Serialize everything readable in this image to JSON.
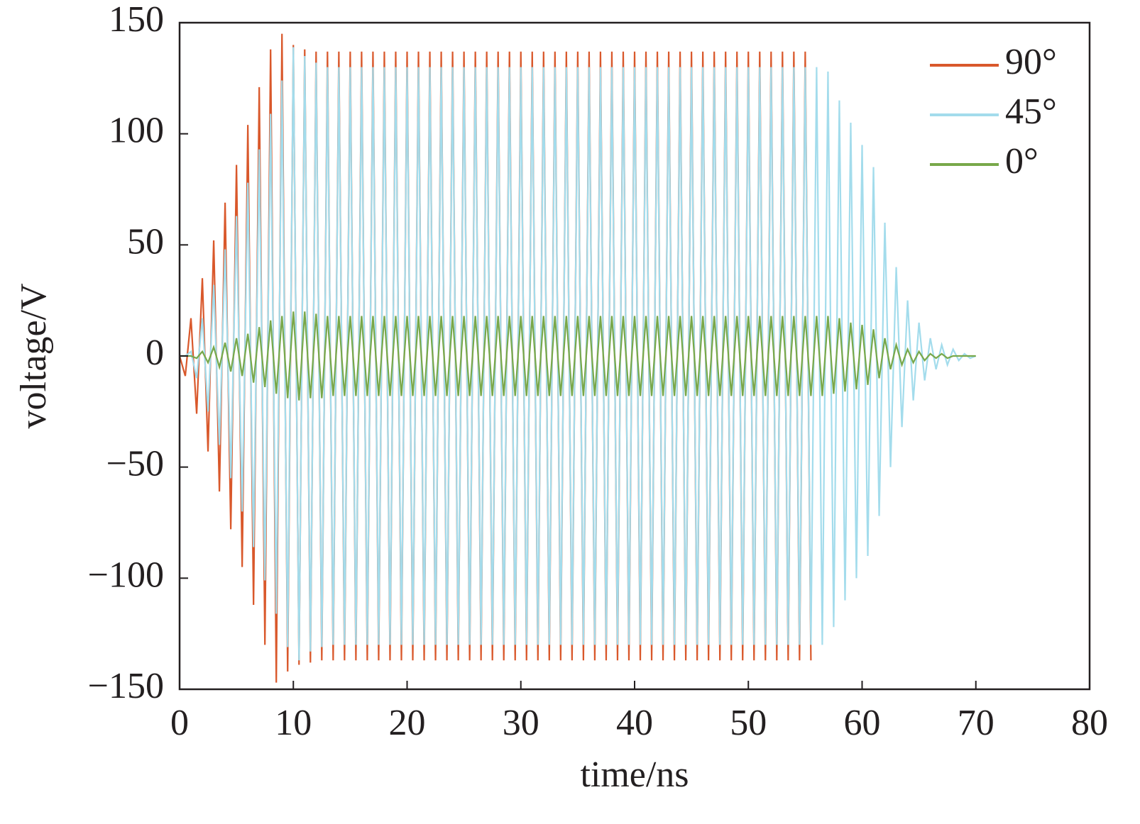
{
  "chart_data": {
    "type": "line",
    "xlabel": "time/ns",
    "ylabel": "voltage/V",
    "xlim": [
      0,
      80
    ],
    "xticks": [
      0,
      10,
      20,
      30,
      40,
      50,
      60,
      70,
      80
    ],
    "ylim": [
      -150,
      150
    ],
    "yticks": [
      {
        "value": -150,
        "label": "−150"
      },
      {
        "value": -100,
        "label": "−100"
      },
      {
        "value": -50,
        "label": "−50"
      },
      0,
      50,
      100,
      150
    ],
    "grid": false,
    "legend": "upper right",
    "x": [
      0,
      0.5,
      1,
      1.5,
      2,
      2.5,
      3,
      3.5,
      4,
      4.5,
      5,
      5.5,
      6,
      6.5,
      7,
      7.5,
      8,
      8.5,
      9,
      9.5,
      10,
      10.5,
      11,
      11.5,
      12,
      12.5,
      13,
      13.5,
      14,
      14.5,
      15,
      15.5,
      16,
      16.5,
      17,
      17.5,
      18,
      18.5,
      19,
      19.5,
      20,
      20.5,
      21,
      21.5,
      22,
      22.5,
      23,
      23.5,
      24,
      24.5,
      25,
      25.5,
      26,
      26.5,
      27,
      27.5,
      28,
      28.5,
      29,
      29.5,
      30,
      30.5,
      31,
      31.5,
      32,
      32.5,
      33,
      33.5,
      34,
      34.5,
      35,
      35.5,
      36,
      36.5,
      37,
      37.5,
      38,
      38.5,
      39,
      39.5,
      40,
      40.5,
      41,
      41.5,
      42,
      42.5,
      43,
      43.5,
      44,
      44.5,
      45,
      45.5,
      46,
      46.5,
      47,
      47.5,
      48,
      48.5,
      49,
      49.5,
      50,
      50.5,
      51,
      51.5,
      52,
      52.5,
      53,
      53.5,
      54,
      54.5,
      55,
      55.5,
      56,
      56.5,
      57,
      57.5,
      58,
      58.5,
      59,
      59.5,
      60,
      60.5,
      61,
      61.5,
      62,
      62.5,
      63,
      63.5,
      64,
      64.5,
      65,
      65.5,
      66,
      66.5,
      67,
      67.5,
      68,
      68.5,
      69,
      69.5,
      70
    ],
    "series": [
      {
        "name": "90°",
        "color": "#d9582b",
        "values": [
          0,
          -9,
          17,
          -26,
          35,
          -43,
          52,
          -61,
          69,
          -78,
          86,
          -95,
          104,
          -112,
          121,
          -130,
          138,
          -147,
          145,
          -142,
          140,
          -139,
          138,
          -138,
          137,
          -137,
          137,
          -137,
          137,
          -137,
          137,
          -137,
          137,
          -137,
          137,
          -137,
          137,
          -137,
          137,
          -137,
          137,
          -137,
          137,
          -137,
          137,
          -137,
          137,
          -137,
          137,
          -137,
          137,
          -137,
          137,
          -137,
          137,
          -137,
          137,
          -137,
          137,
          -137,
          137,
          -137,
          137,
          -137,
          137,
          -137,
          137,
          -137,
          137,
          -137,
          137,
          -137,
          137,
          -137,
          137,
          -137,
          137,
          -137,
          137,
          -137,
          137,
          -137,
          137,
          -137,
          137,
          -137,
          137,
          -137,
          137,
          -137,
          137,
          -137,
          137,
          -137,
          137,
          -137,
          137,
          -137,
          137,
          -137,
          137,
          -137,
          137,
          -137,
          137,
          -137,
          137,
          -137,
          137,
          -137,
          137,
          -137,
          null,
          null,
          null,
          null,
          null,
          null,
          null,
          null,
          null,
          null,
          null,
          null,
          null,
          null,
          null,
          null,
          null,
          null,
          null,
          null,
          null,
          null,
          null,
          null,
          null,
          null,
          null,
          null,
          null
        ]
      },
      {
        "name": "45°",
        "color": "#a3dcec",
        "values": [
          0,
          0,
          2,
          -10,
          17,
          -25,
          32,
          -40,
          48,
          -55,
          63,
          -70,
          78,
          -86,
          93,
          -101,
          109,
          -116,
          124,
          -131,
          139,
          -137,
          135,
          -133,
          132,
          -131,
          130,
          -130,
          130,
          -130,
          130,
          -130,
          130,
          -130,
          130,
          -130,
          130,
          -130,
          130,
          -130,
          130,
          -130,
          130,
          -130,
          130,
          -130,
          130,
          -130,
          130,
          -130,
          130,
          -130,
          130,
          -130,
          130,
          -130,
          130,
          -130,
          130,
          -130,
          130,
          -130,
          130,
          -130,
          130,
          -130,
          130,
          -130,
          130,
          -130,
          130,
          -130,
          130,
          -130,
          130,
          -130,
          130,
          -130,
          130,
          -130,
          130,
          -130,
          130,
          -130,
          130,
          -130,
          130,
          -130,
          130,
          -130,
          130,
          -130,
          130,
          -130,
          130,
          -130,
          130,
          -130,
          130,
          -130,
          130,
          -130,
          130,
          -130,
          130,
          -130,
          130,
          -130,
          130,
          -130,
          130,
          -130,
          130,
          -130,
          128,
          -122,
          115,
          -110,
          105,
          -100,
          95,
          -90,
          85,
          -72,
          60,
          -50,
          40,
          -32,
          25,
          -20,
          15,
          -11,
          8,
          -6,
          5,
          -4,
          3,
          -2,
          1,
          -1,
          0
        ]
      },
      {
        "name": "0°",
        "color": "#78a84a",
        "values": [
          0,
          0,
          0,
          -1,
          2,
          -3,
          4,
          -5,
          6,
          -7,
          8,
          -9,
          10,
          -12,
          13,
          -14,
          16,
          -17,
          18,
          -19,
          20,
          -20,
          20,
          -19,
          19,
          -19,
          18,
          -18,
          18,
          -18,
          18,
          -18,
          18,
          -18,
          18,
          -18,
          18,
          -18,
          18,
          -18,
          18,
          -18,
          18,
          -18,
          18,
          -18,
          18,
          -18,
          18,
          -18,
          18,
          -18,
          18,
          -18,
          18,
          -18,
          18,
          -18,
          18,
          -18,
          18,
          -18,
          18,
          -18,
          18,
          -18,
          18,
          -18,
          18,
          -18,
          18,
          -18,
          18,
          -18,
          18,
          -18,
          18,
          -18,
          18,
          -18,
          18,
          -18,
          18,
          -18,
          18,
          -18,
          18,
          -18,
          18,
          -18,
          18,
          -18,
          18,
          -18,
          18,
          -18,
          18,
          -18,
          18,
          -18,
          18,
          -18,
          18,
          -18,
          18,
          -18,
          18,
          -18,
          18,
          -18,
          18,
          -18,
          18,
          -18,
          18,
          -17,
          17,
          -16,
          15,
          -15,
          14,
          -13,
          12,
          -10,
          8,
          -6,
          5,
          -4,
          3,
          -3,
          2,
          -2,
          1,
          -1,
          1,
          -1,
          0,
          0,
          0,
          0,
          0
        ]
      }
    ]
  }
}
